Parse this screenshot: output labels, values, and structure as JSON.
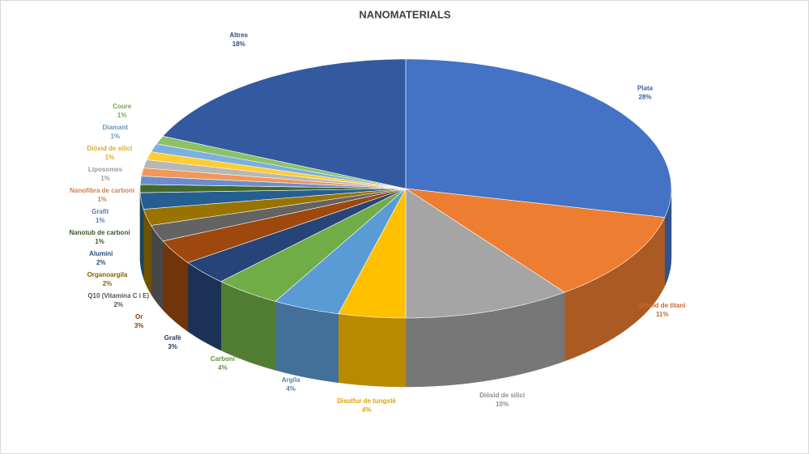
{
  "chart_data": {
    "type": "pie3d",
    "title": "NANOMATERIALS",
    "categories": [
      "Plata",
      "Diòxid de titani",
      "Diòxid de silici",
      "Disulfur de tungstè",
      "Argila",
      "Carboni",
      "Grafè",
      "Or",
      "Q10 (Vitamina C i E)",
      "Organoargila",
      "Alumini",
      "Nanotub de carboni",
      "Grafit",
      "Nanofibra de carboni",
      "Liposomes",
      "Diòxid de silici",
      "Diamant",
      "Coure",
      "Altres"
    ],
    "values": [
      28,
      11,
      10,
      4,
      4,
      4,
      3,
      3,
      2,
      2,
      2,
      1,
      1,
      1,
      1,
      1,
      1,
      1,
      18
    ],
    "value_labels": [
      "28%",
      "11%",
      "10%",
      "4%",
      "4%",
      "4%",
      "3%",
      "3%",
      "2%",
      "2%",
      "2%",
      "1%",
      "1%",
      "1%",
      "1%",
      "1%",
      "1%",
      "1%",
      "18%"
    ],
    "colors": [
      "#4472c4",
      "#ed7d31",
      "#a5a5a5",
      "#ffc000",
      "#5b9bd5",
      "#70ad47",
      "#264478",
      "#9e480e",
      "#636363",
      "#997300",
      "#255e91",
      "#43682b",
      "#698ed0",
      "#f1975a",
      "#b7b7b7",
      "#ffcd33",
      "#7cafdd",
      "#8cc168",
      "#335aa1"
    ]
  }
}
